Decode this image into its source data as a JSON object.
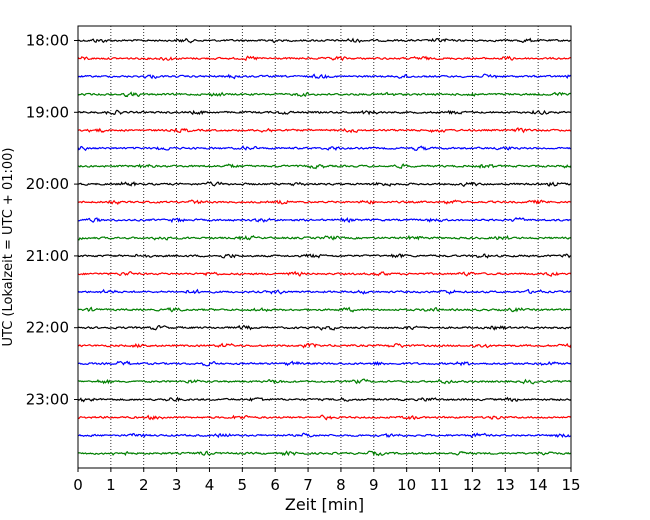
{
  "chart_data": {
    "type": "line",
    "title": "",
    "xlabel": "Zeit  [min]",
    "ylabel": "UTC (Lokalzeit = UTC + 01:00)",
    "xlim": [
      0,
      15
    ],
    "x_ticks": [
      "0",
      "1",
      "2",
      "3",
      "4",
      "5",
      "6",
      "7",
      "8",
      "9",
      "10",
      "11",
      "12",
      "13",
      "14",
      "15"
    ],
    "y_tick_labels": [
      "18:00",
      "19:00",
      "20:00",
      "21:00",
      "22:00",
      "23:00"
    ],
    "grid": "vertical dotted at each minute",
    "trace_colors": [
      "#000000",
      "#ff0000",
      "#0000ff",
      "#007f00"
    ],
    "series": [
      {
        "start": "17:45",
        "baseline": "18:00",
        "color": "#000000"
      },
      {
        "start": "18:00",
        "baseline": "18:15",
        "color": "#ff0000"
      },
      {
        "start": "18:15",
        "baseline": "18:30",
        "color": "#0000ff"
      },
      {
        "start": "18:30",
        "baseline": "18:45",
        "color": "#007f00"
      },
      {
        "start": "18:45",
        "baseline": "19:00",
        "color": "#000000"
      },
      {
        "start": "19:00",
        "baseline": "19:15",
        "color": "#ff0000"
      },
      {
        "start": "19:15",
        "baseline": "19:30",
        "color": "#0000ff"
      },
      {
        "start": "19:30",
        "baseline": "19:45",
        "color": "#007f00"
      },
      {
        "start": "19:45",
        "baseline": "20:00",
        "color": "#000000"
      },
      {
        "start": "20:00",
        "baseline": "20:15",
        "color": "#ff0000"
      },
      {
        "start": "20:15",
        "baseline": "20:30",
        "color": "#0000ff"
      },
      {
        "start": "20:30",
        "baseline": "20:45",
        "color": "#007f00"
      },
      {
        "start": "20:45",
        "baseline": "21:00",
        "color": "#000000"
      },
      {
        "start": "21:00",
        "baseline": "21:15",
        "color": "#ff0000"
      },
      {
        "start": "21:15",
        "baseline": "21:30",
        "color": "#0000ff"
      },
      {
        "start": "21:30",
        "baseline": "21:45",
        "color": "#007f00"
      },
      {
        "start": "21:45",
        "baseline": "22:00",
        "color": "#000000"
      },
      {
        "start": "22:00",
        "baseline": "22:15",
        "color": "#ff0000"
      },
      {
        "start": "22:15",
        "baseline": "22:30",
        "color": "#0000ff"
      },
      {
        "start": "22:30",
        "baseline": "22:45",
        "color": "#007f00"
      },
      {
        "start": "22:45",
        "baseline": "23:00",
        "color": "#000000"
      },
      {
        "start": "23:00",
        "baseline": "23:15",
        "color": "#ff0000"
      },
      {
        "start": "23:15",
        "baseline": "23:30",
        "color": "#0000ff"
      },
      {
        "start": "23:30",
        "baseline": "23:45",
        "color": "#007f00"
      }
    ]
  }
}
